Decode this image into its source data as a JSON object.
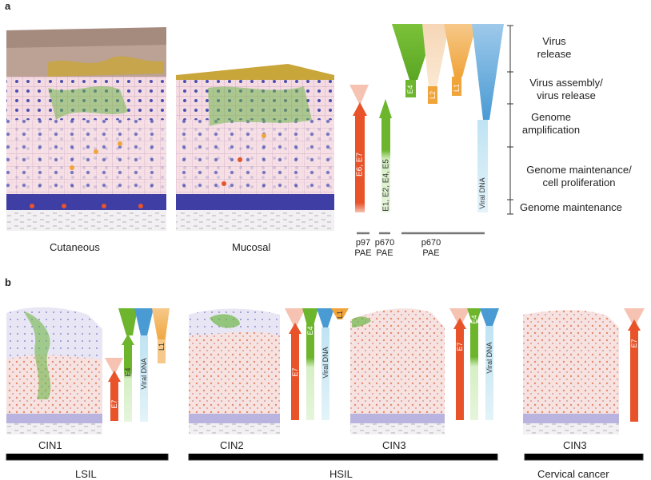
{
  "panel_a": {
    "label": "a",
    "tissues": [
      "Cutaneous",
      "Mucosal"
    ],
    "bars": {
      "e6e7": "E6, E7",
      "e1245": "E1, E2, E4, E5",
      "e4": "E4",
      "l2": "L2",
      "l1": "L1",
      "viral_dna": "Viral DNA"
    },
    "promoters": {
      "p97": [
        "p97",
        "PAE"
      ],
      "p670a": [
        "p670",
        "PAE"
      ],
      "p670b": [
        "p670",
        "PAE"
      ]
    },
    "stages": {
      "virus_release": [
        "Virus",
        "release"
      ],
      "assembly": [
        "Virus assembly/",
        "virus release"
      ],
      "amplification": [
        "Genome",
        "amplification"
      ],
      "maintenance_prolif": [
        "Genome maintenance/",
        "cell proliferation"
      ],
      "maintenance": "Genome maintenance"
    }
  },
  "panel_b": {
    "label": "b",
    "lesions": [
      "CIN1",
      "CIN2",
      "CIN3",
      "CIN3"
    ],
    "bars": {
      "cin1": [
        "E7",
        "E4",
        "Viral DNA",
        "L1"
      ],
      "cin2": [
        "E7",
        "E4",
        "Viral DNA",
        "L1"
      ],
      "cin3": [
        "E7",
        "E4",
        "Viral DNA"
      ],
      "cancer": [
        "E7"
      ]
    },
    "groups": [
      "LSIL",
      "HSIL",
      "Cervical cancer"
    ]
  },
  "colors": {
    "red_orange": "#e8532a",
    "green": "#6cb52d",
    "orange": "#f0a43a",
    "blue": "#4a9bd4",
    "basal": "#b9b3df",
    "pink": "#f6dcd8"
  }
}
